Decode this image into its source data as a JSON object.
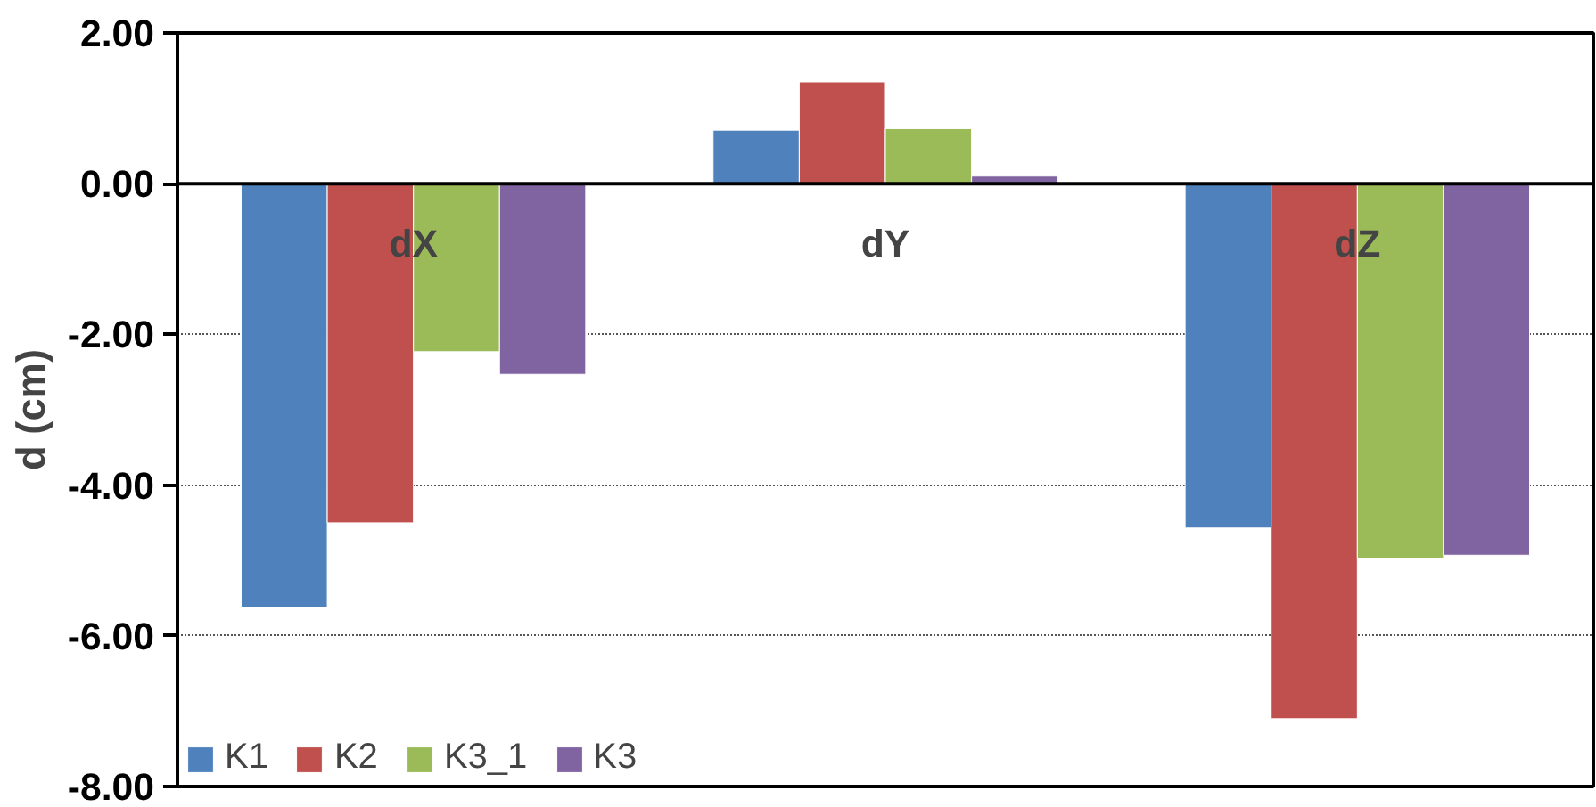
{
  "chart_data": {
    "type": "bar",
    "ylabel": "d (cm)",
    "categories": [
      "dX",
      "dY",
      "dZ"
    ],
    "series": [
      {
        "name": "K1",
        "color": "#4f81bd",
        "values": [
          -5.63,
          0.71,
          -4.57
        ]
      },
      {
        "name": "K2",
        "color": "#c0504d",
        "values": [
          -4.5,
          1.35,
          -7.1
        ]
      },
      {
        "name": "K3_1",
        "color": "#9bbb59",
        "values": [
          -2.23,
          0.73,
          -4.98
        ]
      },
      {
        "name": "K3",
        "color": "#8064a2",
        "values": [
          -2.53,
          0.1,
          -4.93
        ]
      }
    ],
    "ylim": [
      -8,
      2
    ],
    "yticks": [
      {
        "value": -8,
        "label": "-8.00"
      },
      {
        "value": -6,
        "label": "-6.00"
      },
      {
        "value": -4,
        "label": "-4.00"
      },
      {
        "value": -2,
        "label": "-2.00"
      },
      {
        "value": 0,
        "label": "0.00"
      },
      {
        "value": 2,
        "label": "2.00"
      }
    ],
    "grid": "y",
    "legend": "bottom left"
  }
}
